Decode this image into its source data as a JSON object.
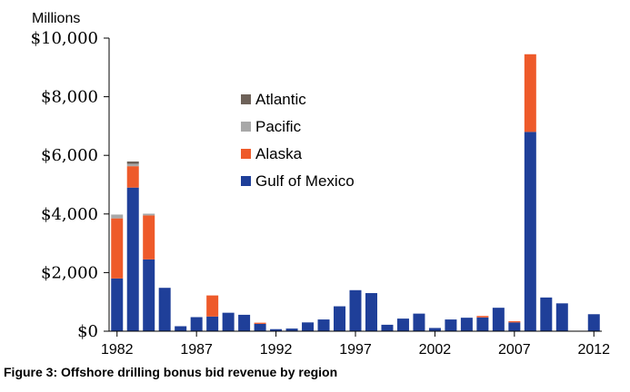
{
  "caption": "Figure 3: Offshore drilling bonus bid revenue by region",
  "chart_data": {
    "type": "bar",
    "stacked": true,
    "title": "",
    "ylabel": "Millions",
    "xlabel": "",
    "ylim": [
      0,
      10000
    ],
    "yticks": [
      0,
      2000,
      4000,
      6000,
      8000,
      10000
    ],
    "ytick_labels": [
      "$0",
      "$2,000",
      "$4,000",
      "$6,000",
      "$8,000",
      "$10,000"
    ],
    "xtick_labels": [
      "1982",
      "1987",
      "1992",
      "1997",
      "2002",
      "2007",
      "2012"
    ],
    "grid": false,
    "legend_position": "center",
    "categories": [
      "1982",
      "1983",
      "1984",
      "1985",
      "1986",
      "1987",
      "1988",
      "1989",
      "1990",
      "1991",
      "1992",
      "1993",
      "1994",
      "1995",
      "1996",
      "1997",
      "1998",
      "1999",
      "2000",
      "2001",
      "2002",
      "2003",
      "2004",
      "2005",
      "2006",
      "2007",
      "2008",
      "2009",
      "2010",
      "2011",
      "2012"
    ],
    "series": [
      {
        "name": "Gulf of Mexico",
        "color": "#1f3f99",
        "values": [
          1800,
          4900,
          2450,
          1480,
          170,
          480,
          500,
          630,
          560,
          250,
          70,
          90,
          300,
          400,
          850,
          1400,
          1300,
          220,
          430,
          600,
          110,
          400,
          460,
          470,
          800,
          300,
          6800,
          1150,
          950,
          0,
          580
        ]
      },
      {
        "name": "Alaska",
        "color": "#ee5a2a",
        "values": [
          2050,
          730,
          1500,
          0,
          0,
          0,
          720,
          0,
          0,
          40,
          0,
          0,
          0,
          0,
          0,
          0,
          0,
          0,
          0,
          0,
          0,
          0,
          0,
          50,
          0,
          40,
          2650,
          0,
          0,
          0,
          0
        ]
      },
      {
        "name": "Pacific",
        "color": "#a8a8a8",
        "values": [
          130,
          80,
          60,
          0,
          0,
          0,
          0,
          0,
          0,
          0,
          0,
          0,
          0,
          0,
          0,
          0,
          0,
          0,
          0,
          0,
          0,
          0,
          0,
          0,
          0,
          0,
          0,
          0,
          0,
          0,
          0
        ]
      },
      {
        "name": "Atlantic",
        "color": "#6e6259",
        "values": [
          0,
          80,
          0,
          0,
          0,
          0,
          0,
          0,
          0,
          0,
          0,
          0,
          0,
          0,
          0,
          0,
          0,
          0,
          0,
          0,
          0,
          0,
          0,
          0,
          0,
          0,
          0,
          0,
          0,
          0,
          0
        ]
      }
    ]
  }
}
